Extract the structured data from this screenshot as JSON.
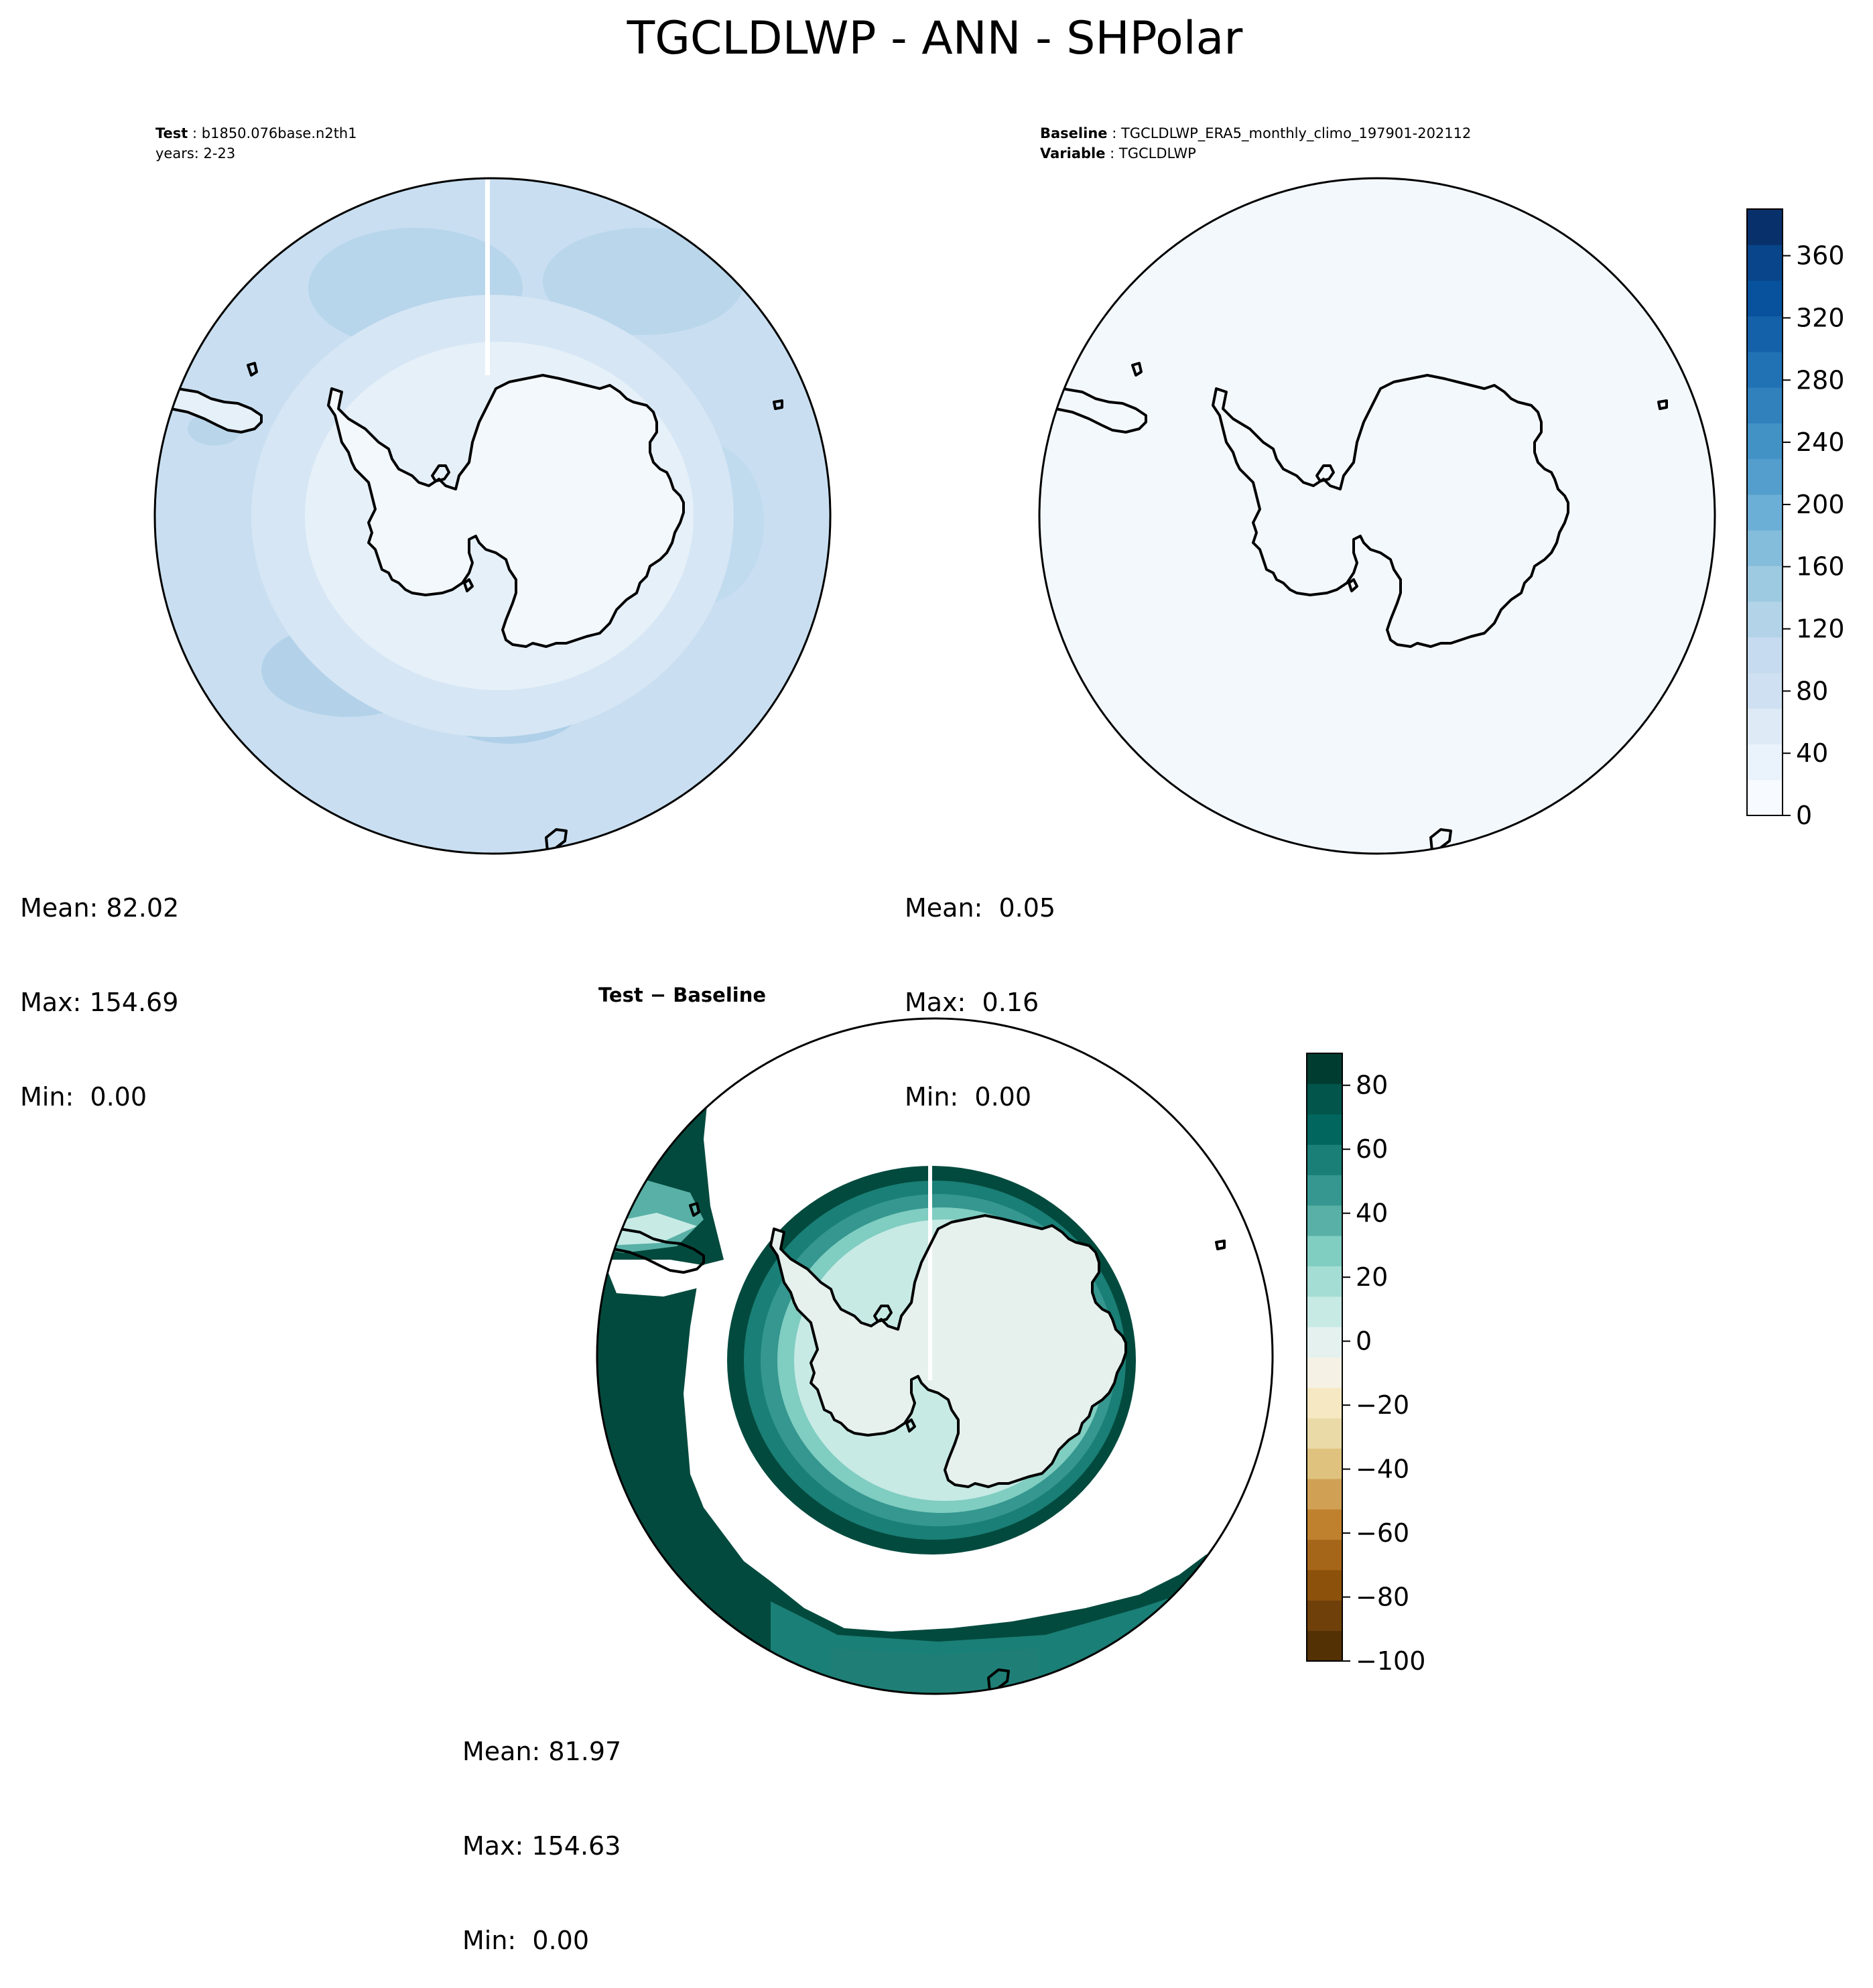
{
  "figure": {
    "title": "TGCLDLWP - ANN - SHPolar"
  },
  "panels": [
    {
      "id": "test",
      "header": [
        {
          "label": "Test",
          "value": "b1850.076base.n2th1"
        },
        {
          "label": "",
          "value": "years: 2-23"
        }
      ],
      "stats": {
        "mean": "Mean: 82.02",
        "max": "Max: 154.69",
        "min": "Min:  0.00"
      }
    },
    {
      "id": "baseline",
      "header": [
        {
          "label": "Baseline",
          "value": "TGCLDLWP_ERA5_monthly_climo_197901-202112"
        },
        {
          "label": "Variable",
          "value": "TGCLDLWP"
        }
      ],
      "stats": {
        "mean": "Mean:  0.05",
        "max": "Max:  0.16",
        "min": "Min:  0.00"
      }
    },
    {
      "id": "difference",
      "header": [
        {
          "label": "Test − Baseline",
          "value": ""
        }
      ],
      "stats": {
        "mean": "Mean: 81.97",
        "max": "Max: 154.63",
        "min": "Min:  0.00"
      }
    }
  ],
  "colorbars": {
    "sequential": {
      "colormap": "Blues",
      "range": [
        0,
        390
      ],
      "tick_labels": [
        "0",
        "40",
        "80",
        "120",
        "160",
        "200",
        "240",
        "280",
        "320",
        "360"
      ],
      "tick_values": [
        0,
        40,
        80,
        120,
        160,
        200,
        240,
        280,
        320,
        360
      ],
      "colors": [
        "#f7fbff",
        "#eaf2fb",
        "#deebf7",
        "#cee0f2",
        "#c6dbef",
        "#b3d3e8",
        "#9ecae1",
        "#84bcdb",
        "#6baed6",
        "#539ecd",
        "#4292c6",
        "#3181bd",
        "#2171b5",
        "#1561a9",
        "#08519c",
        "#08458a",
        "#08306b"
      ]
    },
    "difference": {
      "colormap": "BrBG",
      "range": [
        -100,
        90
      ],
      "tick_labels": [
        "−100",
        "−80",
        "−60",
        "−40",
        "−20",
        "0",
        "20",
        "40",
        "60",
        "80"
      ],
      "tick_values": [
        -100,
        -80,
        -60,
        -40,
        -20,
        0,
        20,
        40,
        60,
        80
      ],
      "colors": [
        "#543005",
        "#6f400a",
        "#8c510a",
        "#a6661a",
        "#bf812d",
        "#d0a155",
        "#dfc27d",
        "#eadaa8",
        "#f6e8c3",
        "#f5f2e5",
        "#e4f1ee",
        "#c7eae5",
        "#a4ddd3",
        "#80cdc1",
        "#58b0a6",
        "#35978f",
        "#1a7f76",
        "#01665e",
        "#01554b",
        "#003c30"
      ]
    }
  },
  "map_fields": {
    "test_background": "#c9dff1",
    "test_ring": "#e0ecf7",
    "test_ice": "#f3f8fd",
    "baseline_fill": "#f3f8fd",
    "diff_dark": "#034a3e",
    "diff_ice": "#e6f1ee"
  }
}
